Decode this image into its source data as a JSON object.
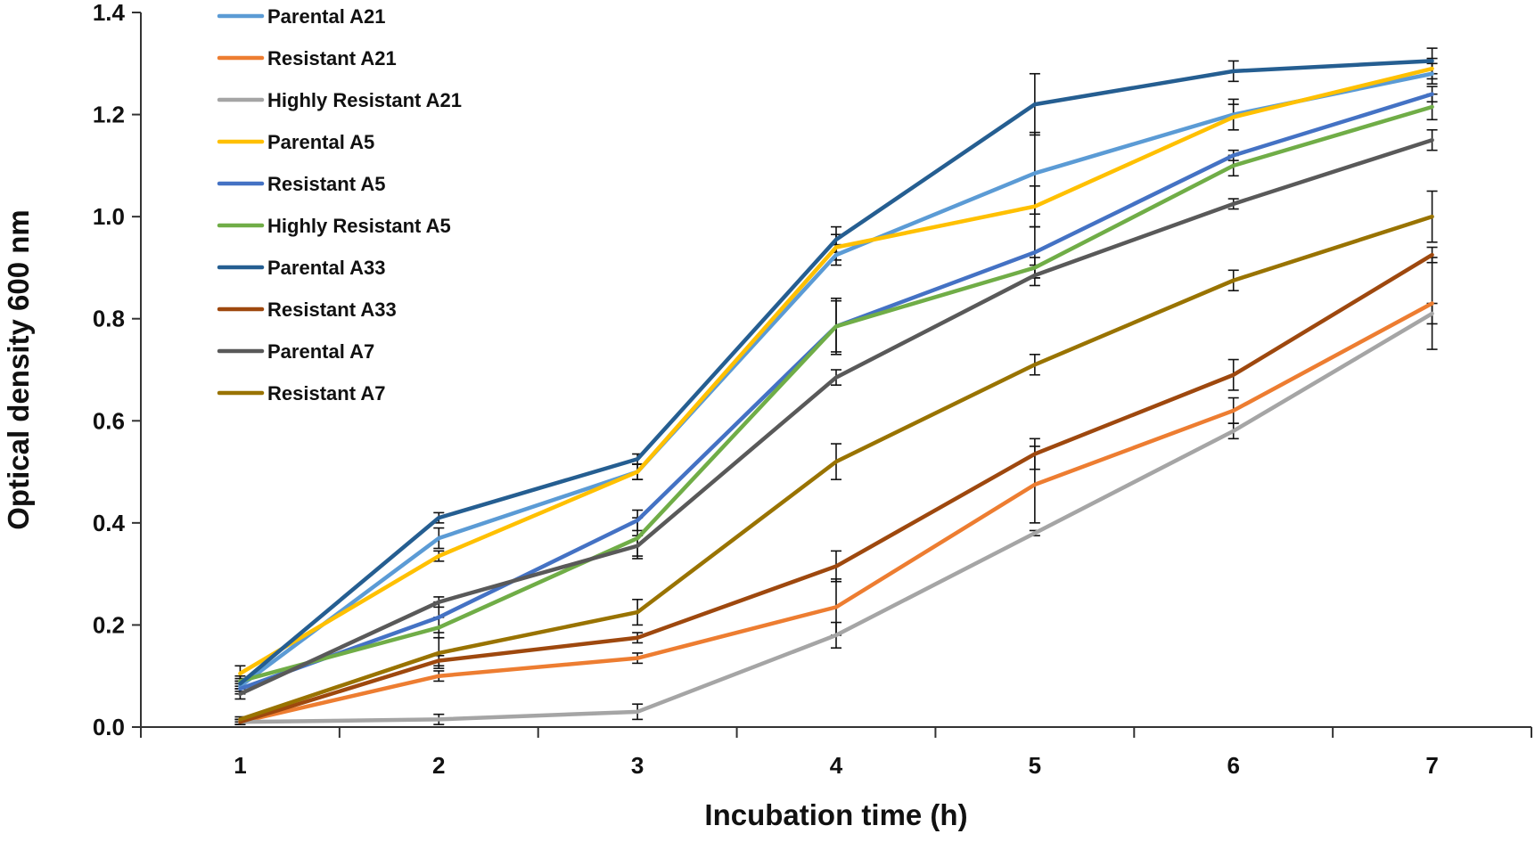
{
  "chart_data": {
    "type": "line",
    "title": "",
    "xlabel": "Incubation time (h)",
    "ylabel": "Optical density 600 nm",
    "x": [
      1,
      2,
      3,
      4,
      5,
      6,
      7
    ],
    "x_tick_labels": [
      "1",
      "2",
      "3",
      "4",
      "5",
      "6",
      "7"
    ],
    "ylim": [
      0,
      1.4
    ],
    "y_ticks": [
      0.0,
      0.2,
      0.4,
      0.6,
      0.8,
      1.0,
      1.2,
      1.4
    ],
    "y_tick_labels": [
      "0.0",
      "0.2",
      "0.4",
      "0.6",
      "0.8",
      "1.0",
      "1.2",
      "1.4"
    ],
    "grid": false,
    "legend_position": "top-left",
    "series": [
      {
        "name": "Parental A21",
        "color": "#5B9BD5",
        "values": [
          0.08,
          0.37,
          0.5,
          0.925,
          1.085,
          1.2,
          1.28
        ],
        "errors": [
          0.01,
          0.02,
          0.015,
          0.02,
          0.08,
          0.03,
          0.02
        ]
      },
      {
        "name": "Resistant A21",
        "color": "#ED7D31",
        "values": [
          0.01,
          0.1,
          0.135,
          0.235,
          0.475,
          0.62,
          0.83
        ],
        "errors": [
          0.005,
          0.01,
          0.01,
          0.055,
          0.075,
          0.025,
          0.09
        ]
      },
      {
        "name": "Highly Resistant A21",
        "color": "#A5A5A5",
        "values": [
          0.01,
          0.015,
          0.03,
          0.18,
          0.38,
          0.58,
          0.81
        ],
        "errors": [
          0.005,
          0.01,
          0.015,
          0.025,
          0.005,
          0.015,
          0.02
        ]
      },
      {
        "name": "Parental A5",
        "color": "#FFC000",
        "values": [
          0.105,
          0.335,
          0.5,
          0.94,
          1.02,
          1.195,
          1.29
        ],
        "errors": [
          0.015,
          0.01,
          0.015,
          0.025,
          0.04,
          0.025,
          0.02
        ]
      },
      {
        "name": "Resistant A5",
        "color": "#4472C4",
        "values": [
          0.075,
          0.215,
          0.405,
          0.785,
          0.93,
          1.12,
          1.24
        ],
        "errors": [
          0.01,
          0.03,
          0.02,
          0.055,
          0.05,
          0.01,
          0.015
        ]
      },
      {
        "name": "Highly Resistant A5",
        "color": "#70AD47",
        "values": [
          0.09,
          0.195,
          0.37,
          0.785,
          0.9,
          1.1,
          1.215
        ],
        "errors": [
          0.01,
          0.02,
          0.04,
          0.05,
          0.02,
          0.02,
          0.025
        ]
      },
      {
        "name": "Parental A33",
        "color": "#255E91",
        "values": [
          0.085,
          0.41,
          0.525,
          0.955,
          1.22,
          1.285,
          1.305
        ],
        "errors": [
          0.01,
          0.01,
          0.01,
          0.025,
          0.06,
          0.02,
          0.025
        ]
      },
      {
        "name": "Resistant A33",
        "color": "#9E480E",
        "values": [
          0.01,
          0.13,
          0.175,
          0.315,
          0.535,
          0.69,
          0.925
        ],
        "errors": [
          0.005,
          0.01,
          0.01,
          0.03,
          0.03,
          0.03,
          0.015
        ]
      },
      {
        "name": "Parental A7",
        "color": "#595959",
        "values": [
          0.065,
          0.245,
          0.355,
          0.685,
          0.885,
          1.025,
          1.15
        ],
        "errors": [
          0.01,
          0.01,
          0.02,
          0.015,
          0.02,
          0.01,
          0.02
        ]
      },
      {
        "name": "Resistant A7",
        "color": "#997300",
        "values": [
          0.015,
          0.145,
          0.225,
          0.52,
          0.71,
          0.875,
          1.0
        ],
        "errors": [
          0.005,
          0.03,
          0.025,
          0.035,
          0.02,
          0.02,
          0.05
        ]
      }
    ]
  }
}
